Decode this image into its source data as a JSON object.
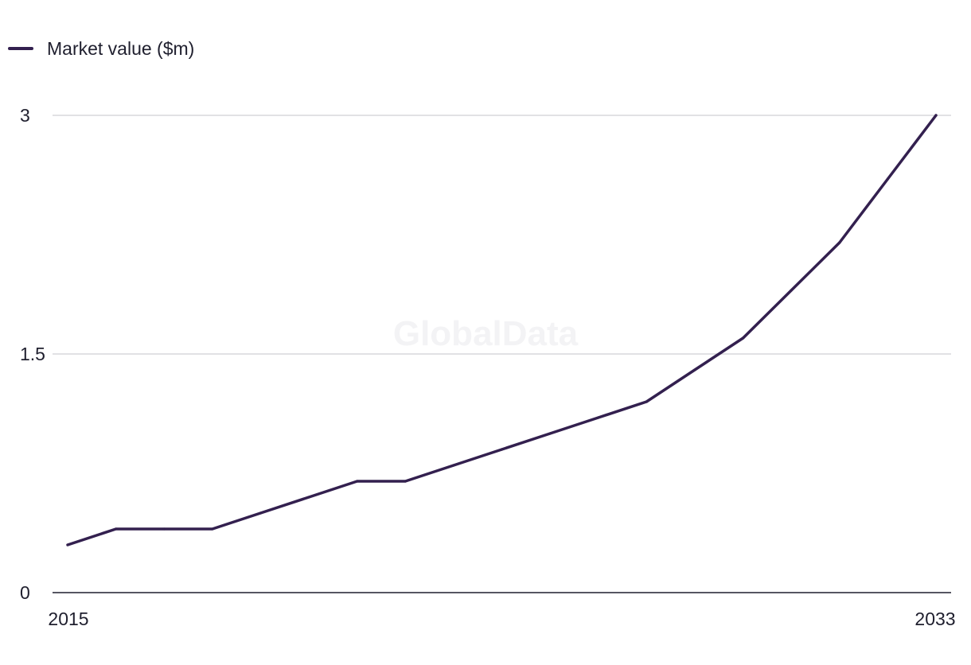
{
  "legend": {
    "label": "Market value ($m)"
  },
  "watermark": "GlobalData",
  "colors": {
    "series": "#33204f",
    "grid": "#d7d7dc",
    "axis": "#1f1f2e"
  },
  "chart_data": {
    "type": "line",
    "x": [
      2015,
      2016,
      2017,
      2018,
      2019,
      2020,
      2021,
      2022,
      2023,
      2024,
      2025,
      2026,
      2027,
      2028,
      2029,
      2030,
      2031,
      2032,
      2033
    ],
    "x_tick_labels": [
      "2015",
      "2033"
    ],
    "series": [
      {
        "name": "Market value ($m)",
        "values": [
          0.3,
          0.4,
          0.4,
          0.4,
          0.5,
          0.6,
          0.7,
          0.7,
          0.8,
          0.9,
          1.0,
          1.1,
          1.2,
          1.4,
          1.6,
          1.9,
          2.2,
          2.6,
          3.0
        ]
      }
    ],
    "ylim": [
      0,
      3
    ],
    "y_ticks": [
      0,
      1.5,
      3
    ],
    "y_tick_labels": [
      "0",
      "1.5",
      "3"
    ],
    "grid": true,
    "legend_position": "top-left"
  }
}
